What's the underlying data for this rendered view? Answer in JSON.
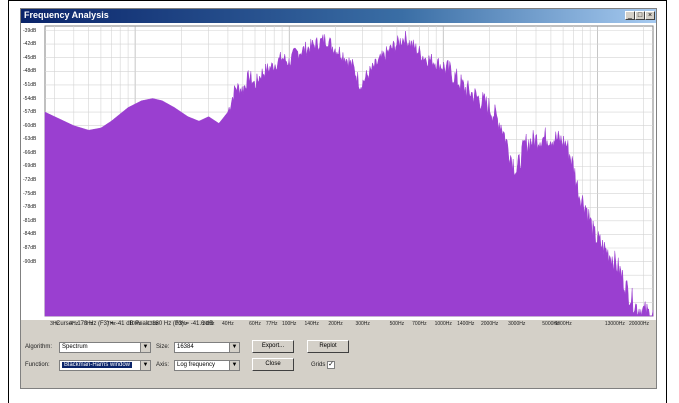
{
  "window": {
    "title": "Frequency Analysis",
    "controls": {
      "minimize": "_",
      "maximize": "□",
      "close": "×"
    }
  },
  "chart_data": {
    "type": "area",
    "xscale": "log",
    "xlim": [
      2.6,
      23000
    ],
    "ylim": [
      -102,
      -38
    ],
    "grid": true,
    "color": "#9a3fd0",
    "ytick_labels": [
      "-39dB",
      "-42dB",
      "-45dB",
      "-48dB",
      "-51dB",
      "-54dB",
      "-57dB",
      "-60dB",
      "-63dB",
      "-66dB",
      "-69dB",
      "-72dB",
      "-75dB",
      "-78dB",
      "-81dB",
      "-84dB",
      "-87dB",
      "-90dB"
    ],
    "ytick_values": [
      -39,
      -42,
      -45,
      -48,
      -51,
      -54,
      -57,
      -60,
      -63,
      -66,
      -69,
      -72,
      -75,
      -78,
      -81,
      -84,
      -87,
      -90
    ],
    "xtick_labels": [
      "3Hz",
      "4Hz",
      "5Hz",
      "7Hz",
      "10Hz",
      "13Hz",
      "20Hz",
      "30Hz",
      "40Hz",
      "60Hz",
      "77Hz",
      "100Hz",
      "140Hz",
      "200Hz",
      "300Hz",
      "500Hz",
      "700Hz",
      "1000Hz",
      "1400Hz",
      "2000Hz",
      "3000Hz",
      "5000Hz",
      "6000Hz",
      "13000Hz",
      "20000Hz"
    ],
    "xtick_values": [
      3,
      4,
      5,
      7,
      10,
      13,
      20,
      30,
      40,
      60,
      77,
      100,
      140,
      200,
      300,
      500,
      700,
      1000,
      1400,
      2000,
      3000,
      5000,
      6000,
      13000,
      20000
    ],
    "points": [
      [
        2.6,
        -57
      ],
      [
        3,
        -58
      ],
      [
        4,
        -60
      ],
      [
        5,
        -61
      ],
      [
        6,
        -60.5
      ],
      [
        7,
        -59
      ],
      [
        9,
        -56
      ],
      [
        11,
        -54.5
      ],
      [
        13,
        -54
      ],
      [
        15,
        -54.5
      ],
      [
        18,
        -56
      ],
      [
        22,
        -58
      ],
      [
        26,
        -59
      ],
      [
        30,
        -58
      ],
      [
        35,
        -59.5
      ],
      [
        40,
        -57
      ],
      [
        45,
        -51.5
      ],
      [
        50,
        -52
      ],
      [
        55,
        -49
      ],
      [
        60,
        -51
      ],
      [
        66,
        -48.5
      ],
      [
        77,
        -47
      ],
      [
        90,
        -45
      ],
      [
        100,
        -46
      ],
      [
        110,
        -44
      ],
      [
        130,
        -43
      ],
      [
        150,
        -42
      ],
      [
        170,
        -41
      ],
      [
        178,
        -41
      ],
      [
        190,
        -42.5
      ],
      [
        220,
        -44
      ],
      [
        260,
        -47
      ],
      [
        290,
        -51
      ],
      [
        320,
        -49
      ],
      [
        380,
        -46
      ],
      [
        460,
        -43
      ],
      [
        500,
        -42
      ],
      [
        560,
        -40.5
      ],
      [
        640,
        -42.5
      ],
      [
        760,
        -45
      ],
      [
        900,
        -46
      ],
      [
        1100,
        -48
      ],
      [
        1400,
        -52
      ],
      [
        1700,
        -54
      ],
      [
        2000,
        -56
      ],
      [
        2400,
        -60
      ],
      [
        2700,
        -66
      ],
      [
        3000,
        -70
      ],
      [
        3400,
        -64
      ],
      [
        4000,
        -63
      ],
      [
        4800,
        -62.5
      ],
      [
        5500,
        -63
      ],
      [
        6300,
        -64
      ],
      [
        7000,
        -69
      ],
      [
        7600,
        -75
      ],
      [
        8500,
        -78
      ],
      [
        9500,
        -84
      ],
      [
        11000,
        -87
      ],
      [
        12500,
        -89
      ],
      [
        14000,
        -92
      ],
      [
        16000,
        -97
      ],
      [
        18000,
        -100
      ],
      [
        23000,
        -102
      ]
    ]
  },
  "status": {
    "readout": "Cursor: 178 Hz (F3) = -41 dB    Peak: 180 Hz (F3) = -41.6 dB"
  },
  "controls": {
    "algorithm_label": "Algorithm:",
    "algorithm_value": "Spectrum",
    "function_label": "Function:",
    "function_value": "Blackman-Harris window",
    "size_label": "Size:",
    "size_value": "16384",
    "axis_label": "Axis:",
    "axis_value": "Log frequency",
    "export_label": "Export...",
    "replot_label": "Replot",
    "close_label": "Close",
    "grids_label": "Grids",
    "grids_checked": "✓",
    "dropdown_arrow": "▼"
  }
}
